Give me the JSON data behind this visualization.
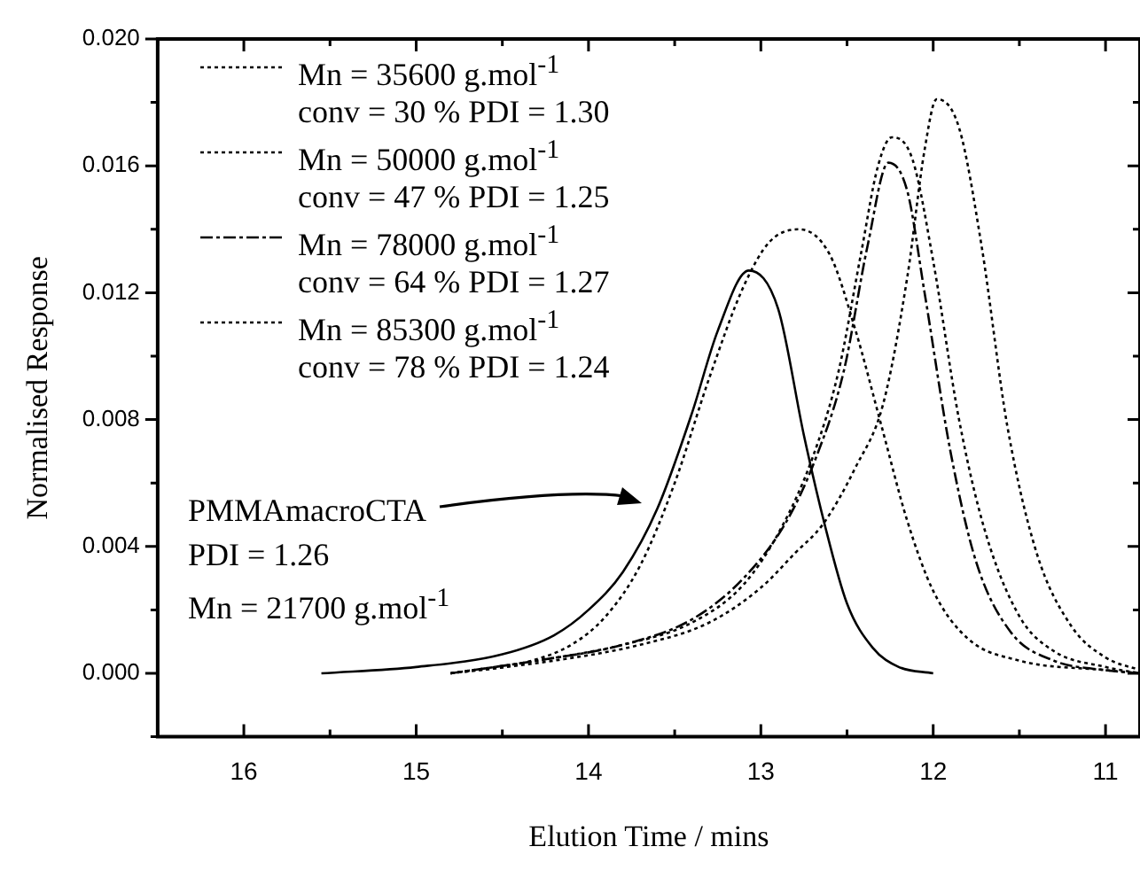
{
  "chart_data": {
    "type": "line",
    "xlabel": "Elution Time / mins",
    "ylabel": "Normalised Response",
    "xlim": [
      16.5,
      10.8
    ],
    "ylim": [
      -0.002,
      0.02
    ],
    "xticks": [
      {
        "value": 16.5,
        "label": null
      },
      16,
      {
        "value": 15.5,
        "label": null
      },
      15,
      {
        "value": 14.5,
        "label": null
      },
      14,
      {
        "value": 13.5,
        "label": null
      },
      13,
      {
        "value": 12.5,
        "label": null
      },
      12,
      {
        "value": 11.5,
        "label": null
      },
      11
    ],
    "yticks": [
      {
        "value": -0.002,
        "label": null
      },
      {
        "value": 0,
        "label": "0.000"
      },
      {
        "value": 0.002,
        "label": null
      },
      {
        "value": 0.004,
        "label": "0.004"
      },
      {
        "value": 0.006,
        "label": null
      },
      {
        "value": 0.008,
        "label": "0.008"
      },
      {
        "value": 0.01,
        "label": null
      },
      {
        "value": 0.012,
        "label": "0.012"
      },
      {
        "value": 0.014,
        "label": null
      },
      {
        "value": 0.016,
        "label": "0.016"
      },
      {
        "value": 0.018,
        "label": null
      },
      {
        "value": 0.02,
        "label": "0.020"
      }
    ],
    "legend": "top left",
    "grid": false,
    "series": [
      {
        "name": "Mn = 35600 g.mol$^{-1}$ conv = 30 % PDI = 1.30",
        "color": "#000000",
        "line_style": "dotted",
        "x": [
          14.8,
          14.4,
          14.1,
          13.9,
          13.7,
          13.5,
          13.3,
          13.1,
          12.95,
          12.78,
          12.6,
          12.45,
          12.3,
          12.15,
          12.0,
          11.8,
          11.5,
          11.0,
          10.8
        ],
        "values": [
          0,
          0.0003,
          0.0009,
          0.0018,
          0.0034,
          0.006,
          0.0093,
          0.0122,
          0.0136,
          0.014,
          0.0132,
          0.0108,
          0.0078,
          0.0048,
          0.0026,
          0.0011,
          0.0004,
          0.0001,
          0
        ]
      },
      {
        "name": "Mn = 50000 g.mol$^{-1}$ conv = 47 % PDI = 1.25",
        "color": "#000000",
        "line_style": "dotted",
        "x": [
          14.8,
          14.3,
          13.8,
          13.4,
          13.1,
          12.88,
          12.7,
          12.55,
          12.42,
          12.32,
          12.24,
          12.12,
          12.0,
          11.85,
          11.7,
          11.5,
          11.3,
          11.0,
          10.8
        ],
        "values": [
          0,
          0.0004,
          0.0009,
          0.0016,
          0.0028,
          0.0046,
          0.0068,
          0.0095,
          0.0132,
          0.016,
          0.0169,
          0.0162,
          0.013,
          0.008,
          0.0045,
          0.0018,
          0.0007,
          0.0002,
          0
        ]
      },
      {
        "name": "Mn = 78000 g.mol$^{-1}$ conv = 64 % PDI = 1.27",
        "color": "#000000",
        "line_style": "dashed",
        "x": [
          14.8,
          14.3,
          13.8,
          13.4,
          13.1,
          12.85,
          12.68,
          12.52,
          12.38,
          12.26,
          12.15,
          12.05,
          11.9,
          11.75,
          11.55,
          11.3,
          11.0,
          10.8
        ],
        "values": [
          0,
          0.0004,
          0.0009,
          0.0017,
          0.003,
          0.0048,
          0.0068,
          0.0095,
          0.0135,
          0.0161,
          0.0152,
          0.012,
          0.007,
          0.0035,
          0.0013,
          0.0004,
          0.0001,
          0
        ]
      },
      {
        "name": "Mn = 85300 g.mol$^{-1}$ conv = 78 % PDI = 1.24",
        "color": "#000000",
        "line_style": "dotted",
        "x": [
          14.8,
          14.2,
          13.7,
          13.3,
          13.0,
          12.8,
          12.64,
          12.45,
          12.29,
          12.15,
          12.05,
          11.98,
          11.85,
          11.72,
          11.57,
          11.4,
          11.2,
          11.0,
          10.8
        ],
        "values": [
          0,
          0.0004,
          0.0009,
          0.0016,
          0.0027,
          0.0038,
          0.0047,
          0.0065,
          0.0085,
          0.0125,
          0.0165,
          0.0181,
          0.0172,
          0.0135,
          0.0078,
          0.0038,
          0.0015,
          0.0005,
          0.0001
        ]
      },
      {
        "color": "#000000",
        "line_style": "solid",
        "x": [
          15.55,
          15.0,
          14.5,
          14.2,
          14.0,
          13.8,
          13.6,
          13.4,
          13.25,
          13.07,
          12.9,
          12.75,
          12.63,
          12.5,
          12.35,
          12.2,
          12.0
        ],
        "values": [
          0,
          0.0002,
          0.0006,
          0.0012,
          0.002,
          0.0032,
          0.0052,
          0.0082,
          0.0108,
          0.0127,
          0.0115,
          0.0075,
          0.0047,
          0.0022,
          0.0008,
          0.0002,
          0
        ]
      }
    ],
    "annotations": [
      "PMMAmacroCTA",
      "PDI = 1.26",
      "Mn = 21700 g.mol$^{-1}$"
    ]
  }
}
